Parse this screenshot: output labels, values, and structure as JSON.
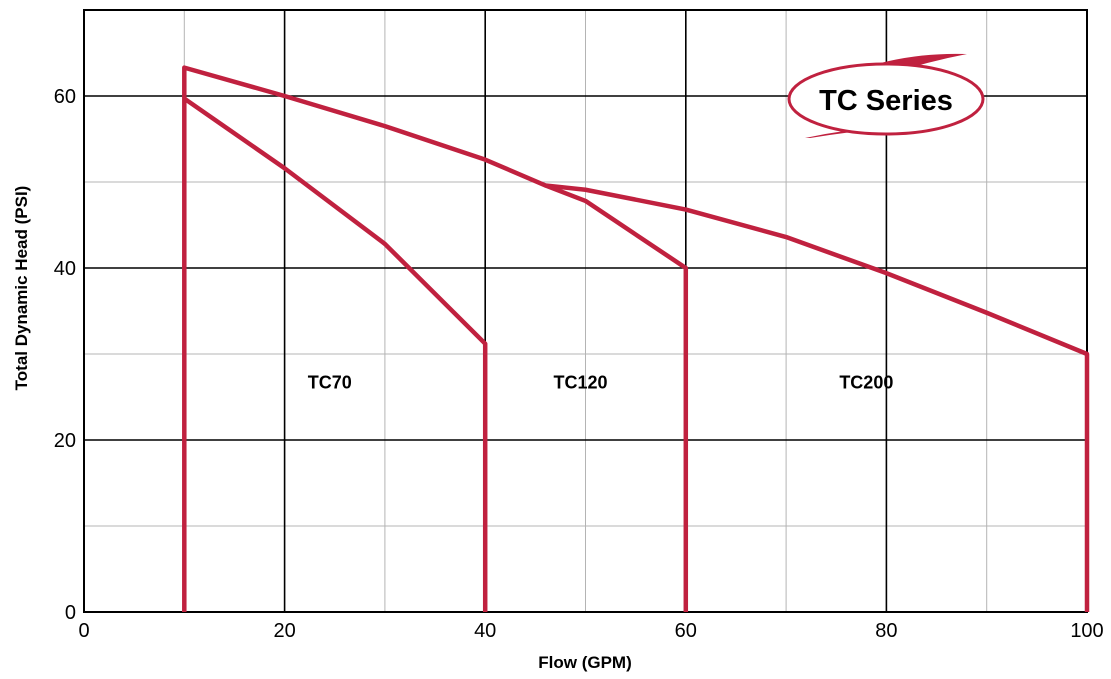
{
  "chart_data": {
    "type": "line",
    "badge": "TC Series",
    "xlabel": "Flow (GPM)",
    "ylabel": "Total Dynamic Head (PSI)",
    "xlim": [
      0,
      100
    ],
    "ylim": [
      0,
      70
    ],
    "x_ticks": [
      0,
      20,
      40,
      60,
      80,
      100
    ],
    "y_ticks": [
      0,
      20,
      40,
      60
    ],
    "x_minor_grid": [
      10,
      30,
      50,
      70,
      90
    ],
    "y_minor_grid": [
      10,
      30,
      50
    ],
    "grid": true,
    "curve_color": "#c0213f",
    "series": [
      {
        "points": [
          [
            10,
            0
          ],
          [
            10,
            63.3
          ],
          [
            20,
            60
          ],
          [
            30,
            56.5
          ],
          [
            40,
            52.6
          ],
          [
            46,
            49.6
          ],
          [
            50,
            49.1
          ],
          [
            60,
            46.8
          ],
          [
            70,
            43.6
          ],
          [
            80,
            39.4
          ],
          [
            90,
            34.8
          ],
          [
            100,
            30
          ],
          [
            100,
            0
          ]
        ]
      },
      {
        "points": [
          [
            10,
            59.7
          ],
          [
            20,
            51.6
          ],
          [
            30,
            42.8
          ],
          [
            40,
            31.2
          ],
          [
            40,
            0
          ]
        ]
      },
      {
        "points": [
          [
            46,
            49.6
          ],
          [
            50,
            47.8
          ],
          [
            60,
            40
          ],
          [
            60,
            0
          ]
        ]
      }
    ],
    "region_labels": [
      {
        "text": "TC70",
        "x": 24.5,
        "y": 26
      },
      {
        "text": "TC120",
        "x": 49.5,
        "y": 26
      },
      {
        "text": "TC200",
        "x": 78,
        "y": 26
      }
    ]
  }
}
